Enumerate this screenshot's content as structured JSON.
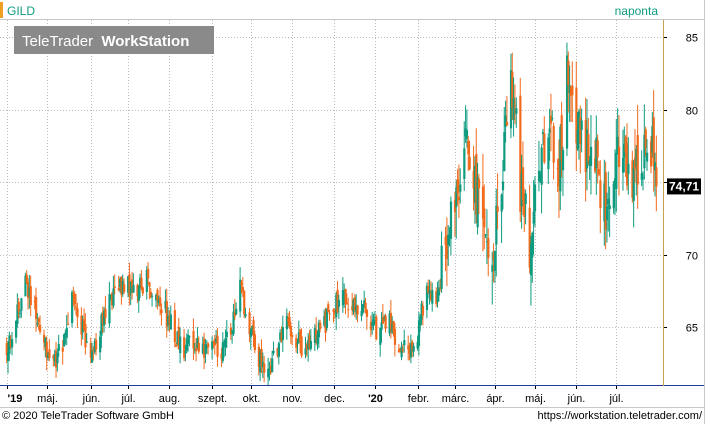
{
  "header": {
    "symbol": "GILD",
    "interval": "naponta",
    "watermark_brand": "TeleTrader",
    "watermark_product": "WorkStation"
  },
  "footer": {
    "copyright": "© 2020 TeleTrader Software GmbH",
    "url": "https://workstation.teletrader.com/"
  },
  "colors": {
    "up": "#0e9b7f",
    "down": "#f26a1b",
    "grid": "#bdbdbd",
    "axis_frame": "#1f3c99",
    "price_tag_bg": "#000000",
    "symbol_text": "#0e9b7f",
    "watermark_bg": "#808080"
  },
  "chart_data": {
    "type": "candlestick",
    "title": "GILD",
    "y_side": "right",
    "ylim": [
      61,
      86.2
    ],
    "y_ticks": [
      65,
      70,
      75,
      80,
      85
    ],
    "y_tick_labels": [
      "65",
      "70",
      "75",
      "80",
      "85"
    ],
    "last_price": 74.71,
    "last_price_label": "74,71",
    "x_labels": [
      "'19",
      "máj.",
      "jún.",
      "júl.",
      "aug.",
      "szept.",
      "okt.",
      "nov.",
      "dec.",
      "'20",
      "febr.",
      "márc.",
      "ápr.",
      "máj.",
      "jún.",
      "júl."
    ],
    "x_label_bold": [
      "'19",
      "'20"
    ],
    "x_label_dates": [
      "2019-04-01",
      "2019-05-01",
      "2019-06-03",
      "2019-07-01",
      "2019-08-01",
      "2019-09-02",
      "2019-10-01",
      "2019-11-01",
      "2019-12-02",
      "2020-01-02",
      "2020-02-03",
      "2020-03-02",
      "2020-04-01",
      "2020-05-01",
      "2020-06-01",
      "2020-07-01"
    ],
    "close_path": [
      [
        "2019-04-01",
        63.6
      ],
      [
        "2019-04-08",
        65.5
      ],
      [
        "2019-04-15",
        67.8
      ],
      [
        "2019-04-22",
        66.2
      ],
      [
        "2019-04-29",
        64.0
      ],
      [
        "2019-05-06",
        62.5
      ],
      [
        "2019-05-13",
        63.8
      ],
      [
        "2019-05-20",
        66.8
      ],
      [
        "2019-05-27",
        65.0
      ],
      [
        "2019-06-03",
        63.3
      ],
      [
        "2019-06-10",
        64.8
      ],
      [
        "2019-06-17",
        66.7
      ],
      [
        "2019-06-24",
        67.6
      ],
      [
        "2019-07-01",
        68.0
      ],
      [
        "2019-07-08",
        67.3
      ],
      [
        "2019-07-15",
        68.4
      ],
      [
        "2019-07-22",
        67.0
      ],
      [
        "2019-07-29",
        66.0
      ],
      [
        "2019-08-05",
        64.5
      ],
      [
        "2019-08-12",
        63.6
      ],
      [
        "2019-08-19",
        64.2
      ],
      [
        "2019-08-26",
        63.5
      ],
      [
        "2019-09-02",
        64.0
      ],
      [
        "2019-09-09",
        63.2
      ],
      [
        "2019-09-16",
        64.7
      ],
      [
        "2019-09-23",
        67.5
      ],
      [
        "2019-09-30",
        65.3
      ],
      [
        "2019-10-07",
        63.0
      ],
      [
        "2019-10-14",
        62.0
      ],
      [
        "2019-10-21",
        63.5
      ],
      [
        "2019-10-28",
        65.8
      ],
      [
        "2019-11-04",
        64.0
      ],
      [
        "2019-11-11",
        63.5
      ],
      [
        "2019-11-18",
        64.3
      ],
      [
        "2019-11-25",
        65.2
      ],
      [
        "2019-12-02",
        66.2
      ],
      [
        "2019-12-09",
        67.3
      ],
      [
        "2019-12-16",
        66.0
      ],
      [
        "2019-12-23",
        66.6
      ],
      [
        "2019-12-30",
        65.5
      ],
      [
        "2020-01-06",
        64.5
      ],
      [
        "2020-01-13",
        65.3
      ],
      [
        "2020-01-20",
        64.0
      ],
      [
        "2020-01-27",
        63.2
      ],
      [
        "2020-02-03",
        64.2
      ],
      [
        "2020-02-10",
        68.0
      ],
      [
        "2020-02-17",
        67.0
      ],
      [
        "2020-02-24",
        70.0
      ],
      [
        "2020-03-02",
        73.0
      ],
      [
        "2020-03-09",
        78.0
      ],
      [
        "2020-03-16",
        75.0
      ],
      [
        "2020-03-23",
        72.0
      ],
      [
        "2020-03-30",
        69.0
      ],
      [
        "2020-04-06",
        76.0
      ],
      [
        "2020-04-13",
        83.0
      ],
      [
        "2020-04-20",
        75.0
      ],
      [
        "2020-04-27",
        71.0
      ],
      [
        "2020-05-04",
        77.0
      ],
      [
        "2020-05-11",
        79.5
      ],
      [
        "2020-05-18",
        75.5
      ],
      [
        "2020-05-25",
        82.0
      ],
      [
        "2020-06-01",
        78.5
      ],
      [
        "2020-06-08",
        77.0
      ],
      [
        "2020-06-15",
        76.5
      ],
      [
        "2020-06-22",
        73.0
      ],
      [
        "2020-06-29",
        75.5
      ],
      [
        "2020-07-06",
        77.0
      ],
      [
        "2020-07-13",
        75.0
      ],
      [
        "2020-07-20",
        76.0
      ],
      [
        "2020-07-27",
        77.5
      ],
      [
        "2020-07-31",
        74.71
      ]
    ],
    "grid": true,
    "legend": "none"
  }
}
